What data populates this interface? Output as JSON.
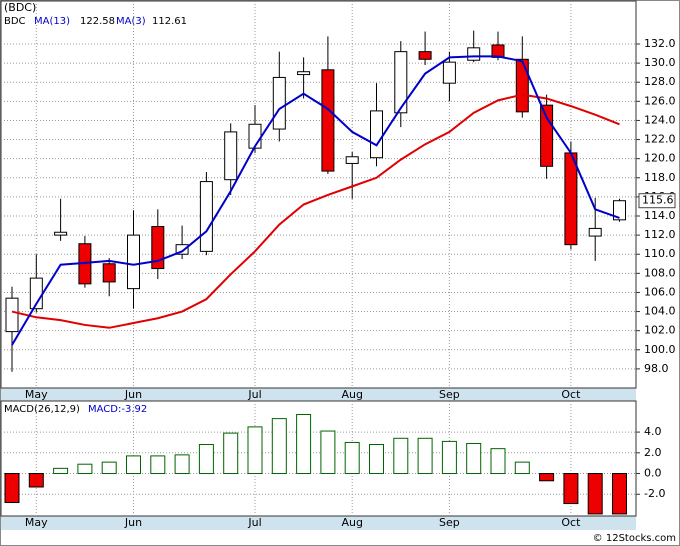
{
  "chart_data": [
    {
      "type": "candlestick",
      "title": "(BDC)",
      "symbol": "BDC",
      "last_price_label": "115.6",
      "source": "© 12Stocks.com",
      "categories": [
        null,
        "May",
        null,
        null,
        null,
        "Jun",
        null,
        null,
        null,
        null,
        "Jul",
        null,
        null,
        null,
        "Aug",
        null,
        null,
        null,
        "Sep",
        null,
        null,
        null,
        null,
        "Oct",
        null,
        null
      ],
      "open": [
        101.9,
        104.3,
        112.0,
        111.1,
        109.0,
        106.4,
        112.9,
        110.0,
        110.3,
        117.8,
        121.1,
        123.1,
        128.8,
        129.3,
        119.5,
        120.1,
        124.8,
        131.2,
        127.9,
        130.3,
        131.9,
        130.4,
        125.6,
        120.6,
        111.9,
        113.6
      ],
      "high": [
        106.6,
        110.0,
        115.8,
        111.9,
        109.6,
        114.6,
        114.7,
        113.0,
        118.6,
        123.7,
        125.6,
        131.2,
        130.6,
        132.8,
        120.7,
        127.9,
        132.3,
        133.3,
        131.2,
        133.4,
        133.3,
        132.8,
        126.7,
        121.8,
        115.9,
        115.8
      ],
      "low": [
        97.7,
        103.9,
        111.4,
        106.5,
        105.6,
        104.3,
        107.4,
        109.5,
        109.9,
        116.2,
        120.6,
        121.8,
        126.3,
        118.4,
        115.8,
        119.2,
        123.3,
        129.8,
        126.0,
        130.1,
        130.3,
        124.3,
        117.9,
        110.5,
        109.3,
        113.4
      ],
      "close": [
        105.4,
        107.5,
        112.3,
        106.9,
        107.1,
        112.0,
        108.5,
        111.0,
        117.6,
        122.8,
        123.6,
        128.5,
        129.1,
        118.7,
        120.2,
        125.0,
        131.2,
        130.4,
        130.1,
        131.6,
        130.6,
        124.9,
        119.2,
        111.0,
        112.7,
        115.6
      ],
      "up_color": "#ffffff",
      "down_color": "#ee0000",
      "series": [
        {
          "name": "MA(13)",
          "legend_value": "122.58",
          "color": "#e00000",
          "values": [
            104.0,
            103.4,
            103.1,
            102.6,
            102.3,
            102.8,
            103.3,
            104.0,
            105.3,
            107.9,
            110.3,
            113.1,
            115.2,
            116.2,
            117.1,
            118.0,
            119.9,
            121.5,
            122.8,
            124.8,
            126.1,
            126.7,
            126.3,
            125.5,
            124.6,
            123.6
          ]
        },
        {
          "name": "MA(3)",
          "legend_value": "112.61",
          "color": "#0000cc",
          "values": [
            100.5,
            104.8,
            108.9,
            109.1,
            109.3,
            108.9,
            109.3,
            110.3,
            112.4,
            116.6,
            121.3,
            125.2,
            126.8,
            125.2,
            122.8,
            121.4,
            125.3,
            128.9,
            130.6,
            130.7,
            130.7,
            130.2,
            124.3,
            120.6,
            114.7,
            113.8
          ]
        }
      ],
      "ylim": [
        96.0,
        136.5
      ],
      "yticks": [
        {
          "value": 98,
          "label": "98.0"
        },
        {
          "value": 100,
          "label": "100.0"
        },
        {
          "value": 102,
          "label": "102.0"
        },
        {
          "value": 104,
          "label": "104.0"
        },
        {
          "value": 106,
          "label": "106.0"
        },
        {
          "value": 108,
          "label": "108.0"
        },
        {
          "value": 110,
          "label": "110.0"
        },
        {
          "value": 112,
          "label": "112.0"
        },
        {
          "value": 114,
          "label": "114.0"
        },
        {
          "value": 116,
          "label": "116.0"
        },
        {
          "value": 118,
          "label": "118.0"
        },
        {
          "value": 120,
          "label": "120.0"
        },
        {
          "value": 122,
          "label": "122.0"
        },
        {
          "value": 124,
          "label": "124.0"
        },
        {
          "value": 126,
          "label": "126.0"
        },
        {
          "value": 128,
          "label": "128.0"
        },
        {
          "value": 130,
          "label": "130.0"
        },
        {
          "value": 132,
          "label": "132.0"
        }
      ],
      "grid": true
    },
    {
      "type": "bar",
      "title": "MACD(26,12,9)",
      "value_title": "MACD:-3.92",
      "categories": [
        null,
        "May",
        null,
        null,
        null,
        "Jun",
        null,
        null,
        null,
        null,
        "Jul",
        null,
        null,
        null,
        "Aug",
        null,
        null,
        null,
        "Sep",
        null,
        null,
        null,
        null,
        "Oct",
        null,
        null
      ],
      "values": [
        -2.8,
        -1.3,
        0.5,
        0.9,
        1.1,
        1.7,
        1.7,
        1.8,
        2.8,
        3.9,
        4.5,
        5.3,
        5.7,
        4.1,
        3.0,
        2.8,
        3.4,
        3.4,
        3.1,
        2.9,
        2.4,
        1.1,
        -0.7,
        -2.9,
        -3.9,
        -3.9
      ],
      "positive_color": "#006400",
      "negative_color": "#ee0000",
      "ylim": [
        -4.1,
        7.0
      ],
      "yticks": [
        {
          "value": 4,
          "label": "4.0"
        },
        {
          "value": 2,
          "label": "2.0"
        },
        {
          "value": 0,
          "label": "0.0"
        },
        {
          "value": -2,
          "label": "-2.0"
        }
      ],
      "grid": true
    }
  ]
}
